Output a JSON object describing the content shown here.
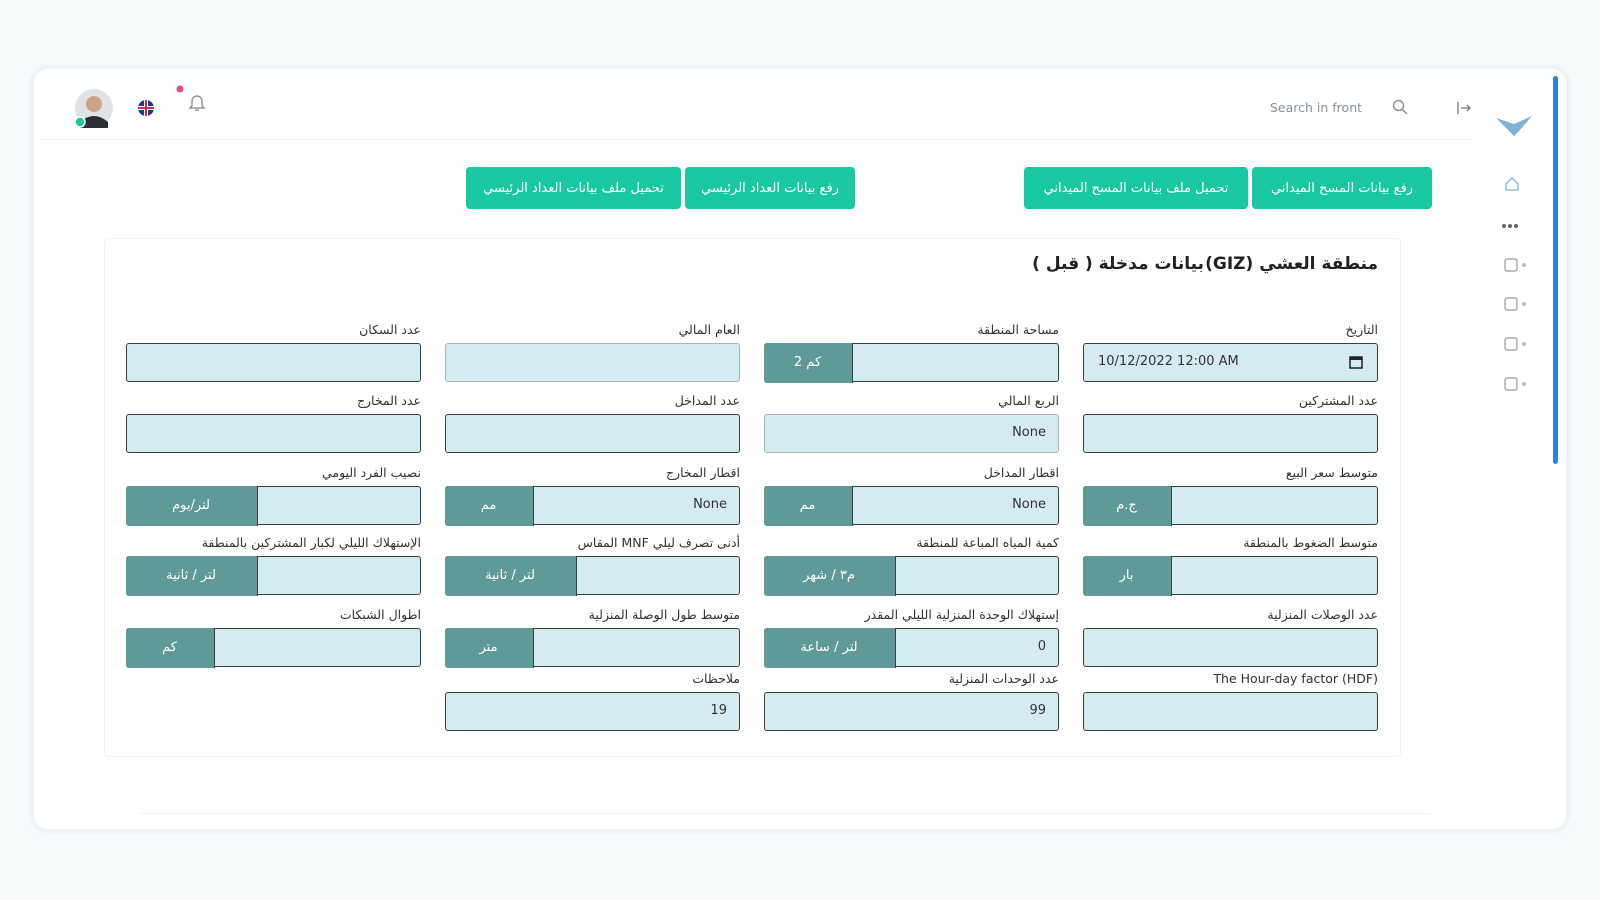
{
  "header": {
    "search_placeholder": "Search in front"
  },
  "buttons": [
    "رفع بيانات المسح الميداني",
    "تحميل ملف بيانات المسح الميداني",
    "رفع بيانات العداد الرئيسي",
    "تحميل ملف بيانات العداد الرئيسي"
  ],
  "card": {
    "title": "منطقة العشي (GIZ)",
    "subtitle": "بيانات مدخلة ( قبل )"
  },
  "form": {
    "rows": [
      [
        {
          "label": "التاريخ",
          "value": "10/12/2022 12:00 AM",
          "kind": "date"
        },
        {
          "label": "مساحة المنطقة",
          "unit": "كم 2"
        },
        {
          "label": "العام المالي",
          "disabled": true
        },
        {
          "label": "عدد السكان"
        }
      ],
      [
        {
          "label": "عدد المشتركين"
        },
        {
          "label": "الربع المالي",
          "value": "None",
          "disabled": true
        },
        {
          "label": "عدد المداخل"
        },
        {
          "label": "عدد المخارج"
        }
      ],
      [
        {
          "label": "متوسط سعر البيع",
          "unit": "ج.م"
        },
        {
          "label": "اقطار المداخل",
          "value": "None",
          "unit": "مم"
        },
        {
          "label": "اقطار المخارج",
          "value": "None",
          "unit": "مم"
        },
        {
          "label": "نصيب الفرد اليومي",
          "unit": "لتر/يوم"
        }
      ],
      [
        {
          "label": "متوسط الضغوط بالمنطقة",
          "unit": "بار"
        },
        {
          "label": "كمية المياه المباعة للمنطقة",
          "unit": "م٣ / شهر"
        },
        {
          "label": "أدنى تصرف ليلي MNF المقاس",
          "unit": "لتر / ثانية"
        },
        {
          "label": "الإستهلاك الليلي لكبار المشتركين بالمنطقة",
          "unit": "لتر / ثانية"
        }
      ],
      [
        {
          "label": "عدد الوصلات المنزلية"
        },
        {
          "label": "إستهلاك الوحدة المنزلية الليلي المقدر",
          "value": "0",
          "unit": "لتر / ساعة"
        },
        {
          "label": "متوسط طول الوصلة المنزلية",
          "unit": "متر"
        },
        {
          "label": "اطوال الشبكات",
          "unit": "كم"
        }
      ],
      [
        {
          "label": "The Hour-day factor (HDF)"
        },
        {
          "label": "عدد الوحدات المنزلية",
          "value": "99"
        },
        {
          "label": "ملاحظات",
          "value": "19"
        }
      ]
    ]
  }
}
